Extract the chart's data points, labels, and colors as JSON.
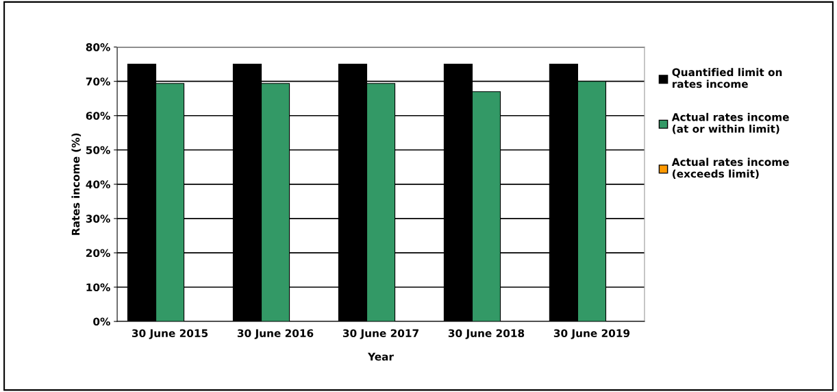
{
  "chart_data": {
    "type": "bar",
    "xlabel": "Year",
    "ylabel": "Rates income (%)",
    "categories": [
      "30 June 2015",
      "30 June 2016",
      "30 June 2017",
      "30 June 2018",
      "30 June 2019"
    ],
    "series": [
      {
        "name": "Quantified limit on\nrates income",
        "color": "#000000",
        "values": [
          75,
          75,
          75,
          75,
          75
        ]
      },
      {
        "name": "Actual rates income\n(at or within limit)",
        "color": "#339966",
        "values": [
          69.4,
          69.4,
          69.4,
          67,
          70
        ]
      },
      {
        "name": "Actual rates income\n(exceeds limit)",
        "color": "#ff9900",
        "values": [
          null,
          null,
          null,
          null,
          null
        ]
      }
    ],
    "ylim": [
      0,
      80
    ],
    "yticks": [
      {
        "value": 0,
        "label": "0%"
      },
      {
        "value": 10,
        "label": "10%"
      },
      {
        "value": 20,
        "label": "20%"
      },
      {
        "value": 30,
        "label": "30%"
      },
      {
        "value": 40,
        "label": "40%"
      },
      {
        "value": 50,
        "label": "50%"
      },
      {
        "value": 60,
        "label": "60%"
      },
      {
        "value": 70,
        "label": "70%"
      },
      {
        "value": 80,
        "label": "80%"
      }
    ],
    "grid": "y",
    "legend": "right"
  }
}
